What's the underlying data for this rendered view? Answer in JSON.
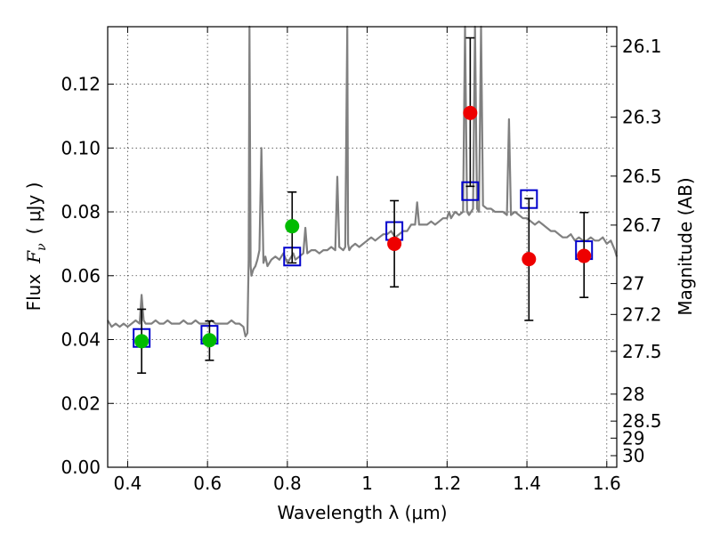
{
  "chart_data": {
    "type": "scatter",
    "xlabel": "Wavelength  λ (μm)",
    "ylabel_prefix": "Flux",
    "ylabel_var": "F",
    "ylabel_sub": "ν",
    "ylabel_unit": "( μJy )",
    "y2label": "Magnitude (AB)",
    "xlim": [
      0.35,
      1.625
    ],
    "ylim": [
      0.0,
      0.138
    ],
    "grid": true,
    "x_ticks": [
      0.4,
      0.6,
      0.8,
      1.0,
      1.2,
      1.4,
      1.6
    ],
    "x_tick_labels": [
      "0.4",
      "0.6",
      "0.8",
      "1",
      "1.2",
      "1.4",
      "1.6"
    ],
    "y_ticks": [
      0.0,
      0.02,
      0.04,
      0.06,
      0.08,
      0.1,
      0.12
    ],
    "y_tick_labels": [
      "0.00",
      "0.02",
      "0.04",
      "0.06",
      "0.08",
      "0.10",
      "0.12"
    ],
    "mag_ticks": [
      26.1,
      26.3,
      26.5,
      26.7,
      27,
      27.2,
      27.5,
      28,
      28.5,
      29,
      30
    ],
    "mag_tick_labels": [
      "26.1",
      "26.3",
      "26.5",
      "26.7",
      "27",
      "27.2",
      "27.5",
      "28",
      "28.5",
      "29",
      "30"
    ],
    "colors": {
      "spectrum": "#808080",
      "model": "#0000cc",
      "green_obs": "#00bb00",
      "red_obs": "#ee0000",
      "errbar": "#000000"
    },
    "series": [
      {
        "name": "model spectrum",
        "kind": "line",
        "x": [
          0.35,
          0.36,
          0.37,
          0.38,
          0.39,
          0.4,
          0.41,
          0.42,
          0.43,
          0.435,
          0.44,
          0.445,
          0.45,
          0.46,
          0.47,
          0.48,
          0.49,
          0.5,
          0.51,
          0.52,
          0.53,
          0.54,
          0.55,
          0.56,
          0.57,
          0.58,
          0.59,
          0.6,
          0.61,
          0.62,
          0.63,
          0.64,
          0.65,
          0.66,
          0.67,
          0.68,
          0.69,
          0.695,
          0.7,
          0.703,
          0.705,
          0.708,
          0.71,
          0.715,
          0.72,
          0.725,
          0.73,
          0.735,
          0.74,
          0.745,
          0.75,
          0.76,
          0.77,
          0.78,
          0.79,
          0.8,
          0.81,
          0.815,
          0.82,
          0.83,
          0.84,
          0.845,
          0.85,
          0.86,
          0.87,
          0.88,
          0.89,
          0.9,
          0.91,
          0.92,
          0.925,
          0.93,
          0.94,
          0.945,
          0.95,
          0.952,
          0.955,
          0.96,
          0.97,
          0.98,
          0.99,
          1.0,
          1.01,
          1.02,
          1.03,
          1.04,
          1.05,
          1.06,
          1.07,
          1.08,
          1.09,
          1.1,
          1.11,
          1.12,
          1.125,
          1.13,
          1.14,
          1.15,
          1.16,
          1.17,
          1.18,
          1.19,
          1.2,
          1.205,
          1.21,
          1.22,
          1.23,
          1.24,
          1.245,
          1.25,
          1.255,
          1.26,
          1.265,
          1.27,
          1.275,
          1.28,
          1.285,
          1.29,
          1.3,
          1.31,
          1.32,
          1.33,
          1.34,
          1.35,
          1.355,
          1.36,
          1.37,
          1.38,
          1.39,
          1.4,
          1.41,
          1.42,
          1.43,
          1.44,
          1.45,
          1.46,
          1.47,
          1.48,
          1.49,
          1.5,
          1.51,
          1.52,
          1.53,
          1.54,
          1.55,
          1.56,
          1.57,
          1.58,
          1.59,
          1.6,
          1.61,
          1.62,
          1.625
        ],
        "y": [
          0.046,
          0.044,
          0.045,
          0.044,
          0.045,
          0.044,
          0.045,
          0.046,
          0.045,
          0.054,
          0.046,
          0.045,
          0.045,
          0.045,
          0.046,
          0.045,
          0.045,
          0.046,
          0.045,
          0.045,
          0.045,
          0.046,
          0.045,
          0.045,
          0.046,
          0.045,
          0.045,
          0.045,
          0.046,
          0.045,
          0.045,
          0.045,
          0.045,
          0.046,
          0.045,
          0.045,
          0.044,
          0.041,
          0.042,
          0.065,
          0.138,
          0.063,
          0.06,
          0.062,
          0.063,
          0.065,
          0.068,
          0.1,
          0.064,
          0.066,
          0.063,
          0.065,
          0.066,
          0.065,
          0.067,
          0.064,
          0.066,
          0.067,
          0.065,
          0.066,
          0.067,
          0.075,
          0.067,
          0.068,
          0.068,
          0.067,
          0.068,
          0.068,
          0.069,
          0.068,
          0.091,
          0.069,
          0.068,
          0.069,
          0.138,
          0.07,
          0.068,
          0.069,
          0.07,
          0.069,
          0.07,
          0.071,
          0.072,
          0.071,
          0.072,
          0.073,
          0.073,
          0.074,
          0.072,
          0.073,
          0.074,
          0.074,
          0.076,
          0.076,
          0.083,
          0.076,
          0.076,
          0.076,
          0.077,
          0.076,
          0.077,
          0.078,
          0.078,
          0.08,
          0.078,
          0.08,
          0.079,
          0.08,
          0.138,
          0.08,
          0.079,
          0.08,
          0.081,
          0.138,
          0.081,
          0.08,
          0.138,
          0.082,
          0.081,
          0.081,
          0.08,
          0.08,
          0.08,
          0.079,
          0.109,
          0.079,
          0.08,
          0.079,
          0.078,
          0.078,
          0.077,
          0.076,
          0.077,
          0.076,
          0.075,
          0.074,
          0.074,
          0.073,
          0.072,
          0.072,
          0.073,
          0.071,
          0.072,
          0.071,
          0.071,
          0.072,
          0.071,
          0.071,
          0.072,
          0.07,
          0.071,
          0.068,
          0.066
        ]
      },
      {
        "name": "model photometry",
        "kind": "square",
        "x": [
          0.435,
          0.605,
          0.812,
          1.068,
          1.258,
          1.405,
          1.543
        ],
        "y": [
          0.0405,
          0.0415,
          0.066,
          0.074,
          0.0865,
          0.084,
          0.068
        ]
      },
      {
        "name": "observed (green)",
        "kind": "circle",
        "x": [
          0.435,
          0.605,
          0.812
        ],
        "y": [
          0.0395,
          0.0398,
          0.0755
        ],
        "err_low": [
          0.0295,
          0.0335,
          0.064
        ],
        "err_high": [
          0.0495,
          0.0458,
          0.0862
        ]
      },
      {
        "name": "observed (red)",
        "kind": "circle",
        "x": [
          1.068,
          1.258,
          1.405,
          1.543
        ],
        "y": [
          0.07,
          0.111,
          0.0652,
          0.0662
        ],
        "err_low": [
          0.0565,
          0.088,
          0.046,
          0.0532
        ],
        "err_high": [
          0.0835,
          0.1345,
          0.0842,
          0.0798
        ]
      }
    ]
  }
}
